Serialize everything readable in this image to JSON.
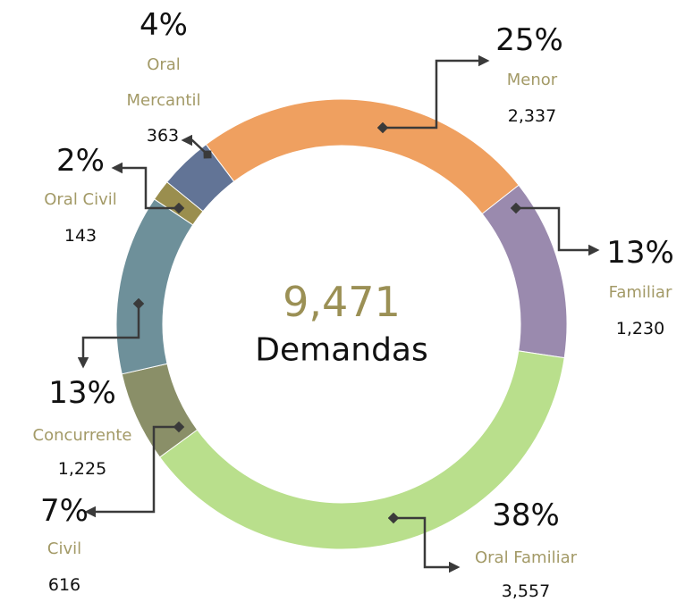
{
  "chart_data": {
    "type": "donut",
    "center_value": "9,471",
    "center_label": "Demandas",
    "categories": [
      "Menor",
      "Familiar",
      "Oral Familiar",
      "Civil",
      "Concurrente",
      "Oral Civil",
      "Oral Mercantil"
    ],
    "values": [
      2337,
      1230,
      3557,
      616,
      1225,
      143,
      363
    ],
    "value_labels": [
      "2,337",
      "1,230",
      "3,557",
      "616",
      "1,225",
      "143",
      "363"
    ],
    "percent_labels": [
      "25%",
      "13%",
      "38%",
      "7%",
      "13%",
      "2%",
      "4%"
    ],
    "colors": [
      "#EFA060",
      "#9A8AAE",
      "#B9DF8C",
      "#8A8F68",
      "#6E909A",
      "#9A8E4E",
      "#627496"
    ]
  }
}
